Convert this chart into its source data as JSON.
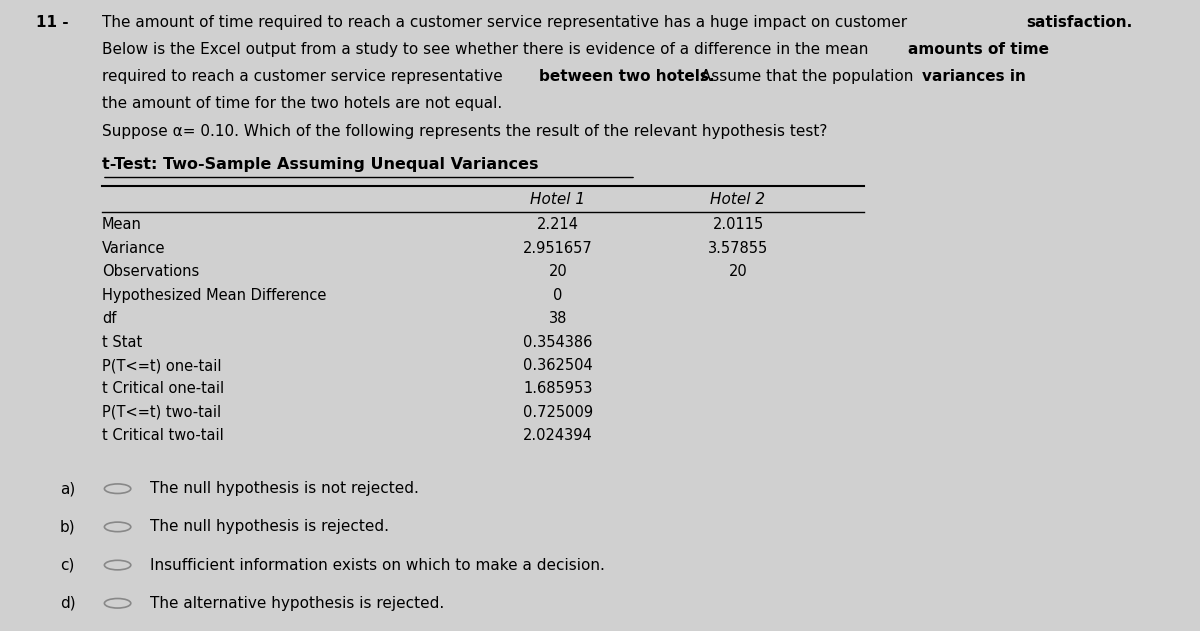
{
  "bg_color": "#d0d0d0",
  "panel_color": "#e8e8e8",
  "table_title": "t-Test: Two-Sample Assuming Unequal Variances",
  "table_rows": [
    [
      "Mean",
      "2.214",
      "2.0115"
    ],
    [
      "Variance",
      "2.951657",
      "3.57855"
    ],
    [
      "Observations",
      "20",
      "20"
    ],
    [
      "Hypothesized Mean Difference",
      "0",
      ""
    ],
    [
      "df",
      "38",
      ""
    ],
    [
      "t Stat",
      "0.354386",
      ""
    ],
    [
      "P(T<=t) one-tail",
      "0.362504",
      ""
    ],
    [
      "t Critical one-tail",
      "1.685953",
      ""
    ],
    [
      "P(T<=t) two-tail",
      "0.725009",
      ""
    ],
    [
      "t Critical two-tail",
      "2.024394",
      ""
    ]
  ],
  "answer_options": [
    [
      "a)",
      "The null hypothesis is not rejected."
    ],
    [
      "b)",
      "The null hypothesis is rejected."
    ],
    [
      "c)",
      "Insufficient information exists on which to make a decision."
    ],
    [
      "d)",
      "The alternative hypothesis is rejected."
    ]
  ]
}
